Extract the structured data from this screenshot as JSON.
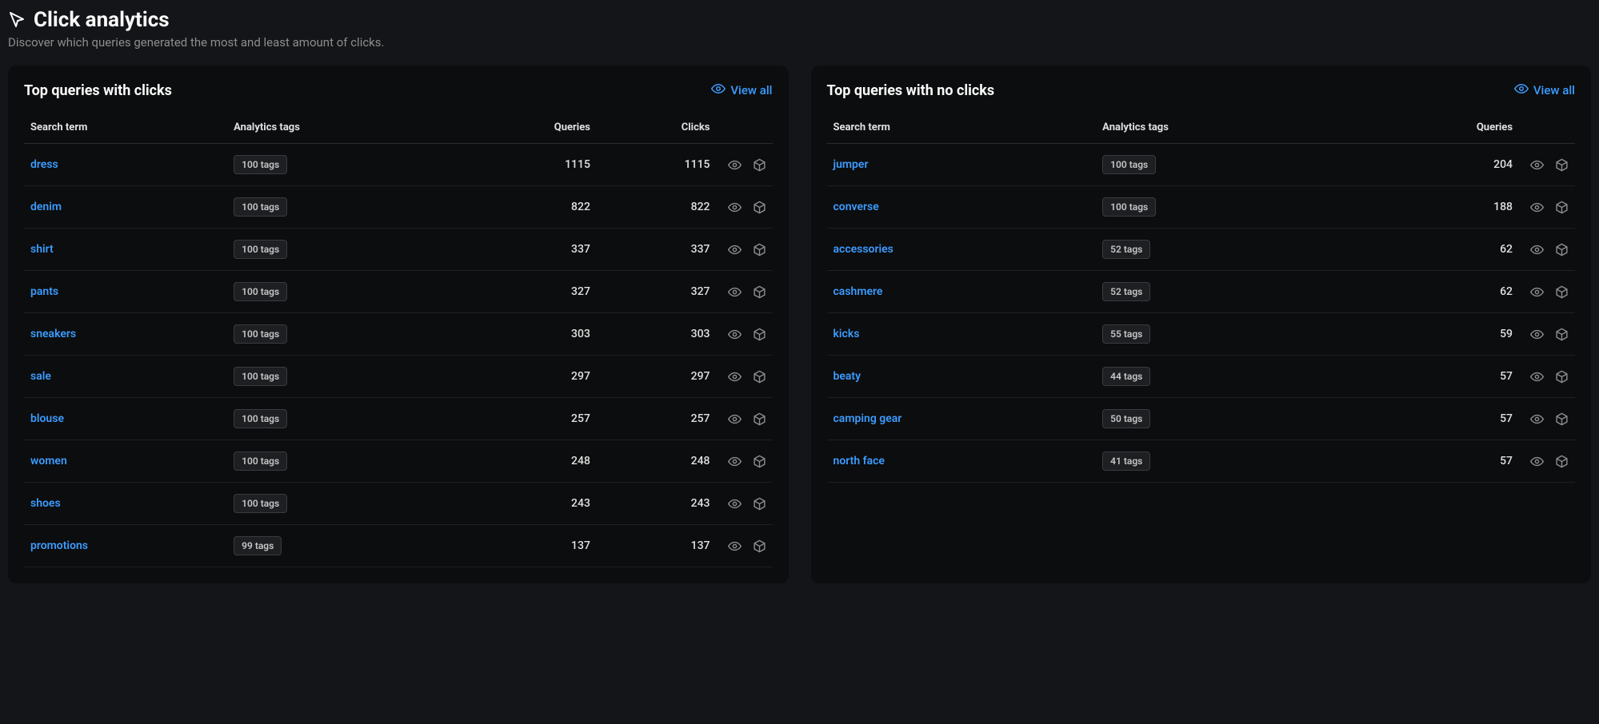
{
  "page": {
    "title": "Click analytics",
    "subtitle": "Discover which queries generated the most and least amount of clicks."
  },
  "colors": {
    "background": "#141518",
    "panel_bg": "#0c0d0e",
    "link": "#3b9cff",
    "text": "#e1e1e1",
    "muted": "#8d8d8d",
    "border": "#2a2b2e",
    "badge_bg": "#1e1f22",
    "badge_border": "#3a3b3e"
  },
  "panels": {
    "with_clicks": {
      "title": "Top queries with clicks",
      "view_all": "View all",
      "columns": {
        "term": "Search term",
        "tags": "Analytics tags",
        "queries": "Queries",
        "clicks": "Clicks"
      },
      "rows": [
        {
          "term": "dress",
          "tags": "100 tags",
          "queries": "1115",
          "clicks": "1115"
        },
        {
          "term": "denim",
          "tags": "100 tags",
          "queries": "822",
          "clicks": "822"
        },
        {
          "term": "shirt",
          "tags": "100 tags",
          "queries": "337",
          "clicks": "337"
        },
        {
          "term": "pants",
          "tags": "100 tags",
          "queries": "327",
          "clicks": "327"
        },
        {
          "term": "sneakers",
          "tags": "100 tags",
          "queries": "303",
          "clicks": "303"
        },
        {
          "term": "sale",
          "tags": "100 tags",
          "queries": "297",
          "clicks": "297"
        },
        {
          "term": "blouse",
          "tags": "100 tags",
          "queries": "257",
          "clicks": "257"
        },
        {
          "term": "women",
          "tags": "100 tags",
          "queries": "248",
          "clicks": "248"
        },
        {
          "term": "shoes",
          "tags": "100 tags",
          "queries": "243",
          "clicks": "243"
        },
        {
          "term": "promotions",
          "tags": "99 tags",
          "queries": "137",
          "clicks": "137"
        }
      ]
    },
    "no_clicks": {
      "title": "Top queries with no clicks",
      "view_all": "View all",
      "columns": {
        "term": "Search term",
        "tags": "Analytics tags",
        "queries": "Queries"
      },
      "rows": [
        {
          "term": "jumper",
          "tags": "100 tags",
          "queries": "204"
        },
        {
          "term": "converse",
          "tags": "100 tags",
          "queries": "188"
        },
        {
          "term": "accessories",
          "tags": "52 tags",
          "queries": "62"
        },
        {
          "term": "cashmere",
          "tags": "52 tags",
          "queries": "62"
        },
        {
          "term": "kicks",
          "tags": "55 tags",
          "queries": "59"
        },
        {
          "term": "beaty",
          "tags": "44 tags",
          "queries": "57"
        },
        {
          "term": "camping gear",
          "tags": "50 tags",
          "queries": "57"
        },
        {
          "term": "north face",
          "tags": "41 tags",
          "queries": "57"
        }
      ]
    }
  }
}
